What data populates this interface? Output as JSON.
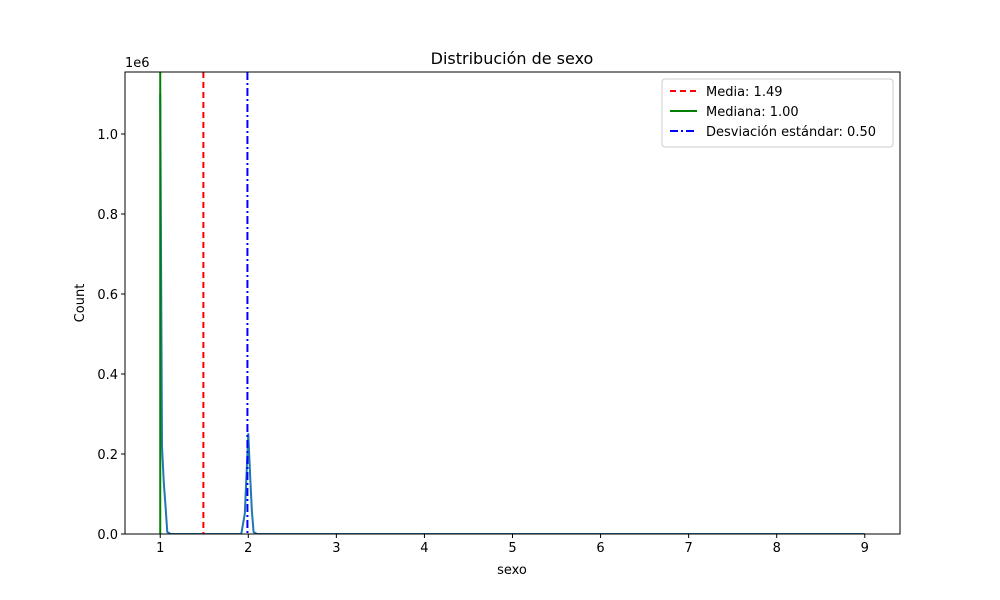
{
  "chart_data": {
    "type": "line",
    "title": "Distribución de sexo",
    "xlabel": "sexo",
    "ylabel": "Count",
    "y_offset_text": "1e6",
    "xlim": [
      0.6,
      9.4
    ],
    "ylim": [
      0,
      1155000
    ],
    "x_ticks": [
      1,
      2,
      3,
      4,
      5,
      6,
      7,
      8,
      9
    ],
    "x_tick_labels": [
      "1",
      "2",
      "3",
      "4",
      "5",
      "6",
      "7",
      "8",
      "9"
    ],
    "y_ticks": [
      0,
      200000,
      400000,
      600000,
      800000,
      1000000
    ],
    "y_tick_labels": [
      "0.0",
      "0.2",
      "0.4",
      "0.6",
      "0.8",
      "1.0"
    ],
    "grid": false,
    "legend_position": "top-right",
    "series": [
      {
        "color": "#1f77b4",
        "x": [
          1.0,
          1.02,
          1.04,
          1.06,
          1.08,
          1.12,
          1.5,
          1.92,
          1.96,
          1.98,
          2.0,
          2.02,
          2.04,
          2.06,
          2.1,
          3,
          4,
          5,
          6,
          7,
          8,
          9.0
        ],
        "y": [
          1100000,
          220000,
          130000,
          70000,
          5000,
          0,
          0,
          0,
          50000,
          150000,
          250000,
          150000,
          60000,
          5000,
          0,
          0,
          0,
          0,
          0,
          0,
          0,
          0
        ]
      }
    ],
    "reference_lines": [
      {
        "label": "Media: 1.49",
        "x": 1.49,
        "color": "#ff0000",
        "style": "dashed"
      },
      {
        "label": "Mediana: 1.00",
        "x": 1.0,
        "color": "#008000",
        "style": "solid"
      },
      {
        "label": "Desviación estándar: 0.50",
        "x": 1.99,
        "color": "#0000ff",
        "style": "dashdot"
      }
    ]
  }
}
